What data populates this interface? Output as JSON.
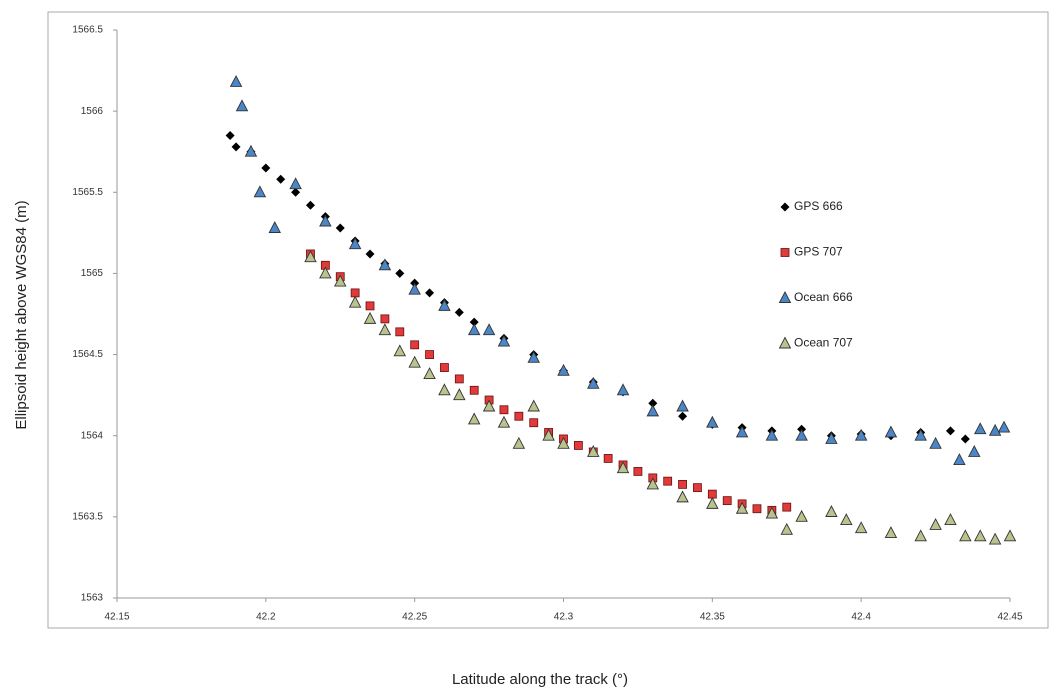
{
  "chart_data": {
    "type": "scatter",
    "x_label": "Latitude along the track (°)",
    "y_label": "Ellipsoid height above  WGS84 (m)",
    "xlim": [
      42.15,
      42.45
    ],
    "xticks": [
      42.15,
      42.2,
      42.25,
      42.3,
      42.35,
      42.4,
      42.45
    ],
    "ylim": [
      1563,
      1566.5
    ],
    "yticks": [
      1563,
      1563.5,
      1564,
      1564.5,
      1565,
      1565.5,
      1566,
      1566.5
    ],
    "grid": false,
    "legend": "right",
    "series": [
      {
        "name": "GPS 666",
        "color": "#000000",
        "marker": "diamond",
        "x": [
          42.188,
          42.19,
          42.195,
          42.2,
          42.205,
          42.21,
          42.215,
          42.22,
          42.225,
          42.23,
          42.235,
          42.24,
          42.245,
          42.25,
          42.255,
          42.26,
          42.265,
          42.27,
          42.28,
          42.29,
          42.3,
          42.31,
          42.32,
          42.33,
          42.34,
          42.35,
          42.36,
          42.37,
          42.38,
          42.39,
          42.4,
          42.41,
          42.42,
          42.43,
          42.435
        ],
        "values": [
          1565.85,
          1565.78,
          1565.75,
          1565.65,
          1565.58,
          1565.5,
          1565.42,
          1565.35,
          1565.28,
          1565.2,
          1565.12,
          1565.06,
          1565.0,
          1564.94,
          1564.88,
          1564.82,
          1564.76,
          1564.7,
          1564.6,
          1564.5,
          1564.4,
          1564.33,
          1564.27,
          1564.2,
          1564.12,
          1564.07,
          1564.05,
          1564.03,
          1564.04,
          1564.0,
          1564.01,
          1564.0,
          1564.02,
          1564.03,
          1563.98
        ]
      },
      {
        "name": "GPS 707",
        "color": "#e03a3a",
        "marker": "square",
        "x": [
          42.215,
          42.22,
          42.225,
          42.23,
          42.235,
          42.24,
          42.245,
          42.25,
          42.255,
          42.26,
          42.265,
          42.27,
          42.275,
          42.28,
          42.285,
          42.29,
          42.295,
          42.3,
          42.305,
          42.31,
          42.315,
          42.32,
          42.325,
          42.33,
          42.335,
          42.34,
          42.345,
          42.35,
          42.355,
          42.36,
          42.365,
          42.37,
          42.375
        ],
        "values": [
          1565.12,
          1565.05,
          1564.98,
          1564.88,
          1564.8,
          1564.72,
          1564.64,
          1564.56,
          1564.5,
          1564.42,
          1564.35,
          1564.28,
          1564.22,
          1564.16,
          1564.12,
          1564.08,
          1564.02,
          1563.98,
          1563.94,
          1563.9,
          1563.86,
          1563.82,
          1563.78,
          1563.74,
          1563.72,
          1563.7,
          1563.68,
          1563.64,
          1563.6,
          1563.58,
          1563.55,
          1563.54,
          1563.56
        ]
      },
      {
        "name": "Ocean 666",
        "color": "#4a86c8",
        "marker": "triangle",
        "x": [
          42.19,
          42.192,
          42.195,
          42.198,
          42.203,
          42.21,
          42.22,
          42.23,
          42.24,
          42.25,
          42.26,
          42.27,
          42.275,
          42.28,
          42.29,
          42.3,
          42.31,
          42.32,
          42.33,
          42.34,
          42.35,
          42.36,
          42.37,
          42.38,
          42.39,
          42.4,
          42.41,
          42.42,
          42.425,
          42.433,
          42.438,
          42.44,
          42.445,
          42.448
        ],
        "values": [
          1566.18,
          1566.03,
          1565.75,
          1565.5,
          1565.28,
          1565.55,
          1565.32,
          1565.18,
          1565.05,
          1564.9,
          1564.8,
          1564.65,
          1564.65,
          1564.58,
          1564.48,
          1564.4,
          1564.32,
          1564.28,
          1564.15,
          1564.18,
          1564.08,
          1564.02,
          1564.0,
          1564.0,
          1563.98,
          1564.0,
          1564.02,
          1564.0,
          1563.95,
          1563.85,
          1563.9,
          1564.04,
          1564.03,
          1564.05
        ]
      },
      {
        "name": "Ocean 707",
        "color": "#b8c48e",
        "marker": "triangle",
        "x": [
          42.215,
          42.22,
          42.225,
          42.23,
          42.235,
          42.24,
          42.245,
          42.25,
          42.255,
          42.26,
          42.265,
          42.27,
          42.275,
          42.28,
          42.285,
          42.29,
          42.295,
          42.3,
          42.31,
          42.32,
          42.33,
          42.34,
          42.35,
          42.36,
          42.37,
          42.375,
          42.38,
          42.39,
          42.395,
          42.4,
          42.41,
          42.42,
          42.425,
          42.43,
          42.435,
          42.44,
          42.445,
          42.45
        ],
        "values": [
          1565.1,
          1565.0,
          1564.95,
          1564.82,
          1564.72,
          1564.65,
          1564.52,
          1564.45,
          1564.38,
          1564.28,
          1564.25,
          1564.1,
          1564.18,
          1564.08,
          1563.95,
          1564.18,
          1564.0,
          1563.95,
          1563.9,
          1563.8,
          1563.7,
          1563.62,
          1563.58,
          1563.55,
          1563.52,
          1563.42,
          1563.5,
          1563.53,
          1563.48,
          1563.43,
          1563.4,
          1563.38,
          1563.45,
          1563.48,
          1563.38,
          1563.38,
          1563.36,
          1563.38
        ]
      }
    ]
  }
}
